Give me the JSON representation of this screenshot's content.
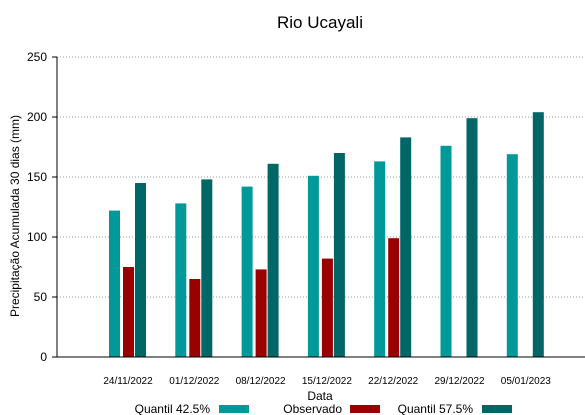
{
  "chart_data": {
    "type": "bar",
    "title": "Rio Ucayali",
    "xlabel": "Data",
    "ylabel": "Precipitação Acumulada 30 dias (mm)",
    "ylim": [
      0,
      250
    ],
    "yticks": [
      "0",
      "50",
      "100",
      "150",
      "200",
      "250"
    ],
    "grid": "horizontal-dotted",
    "legend_position": "bottom",
    "categories": [
      "24/11/2022",
      "01/12/2022",
      "08/12/2022",
      "15/12/2022",
      "22/12/2022",
      "29/12/2022",
      "05/01/2023"
    ],
    "series": [
      {
        "name": "Quantil 42.5%",
        "color": "#009999",
        "values": [
          122,
          128,
          142,
          151,
          163,
          176,
          169
        ]
      },
      {
        "name": "Observado",
        "color": "#990000",
        "values": [
          75,
          65,
          73,
          82,
          99,
          null,
          null
        ]
      },
      {
        "name": "Quantil 57.5%",
        "color": "#006666",
        "values": [
          145,
          148,
          161,
          170,
          183,
          199,
          204
        ]
      }
    ]
  }
}
